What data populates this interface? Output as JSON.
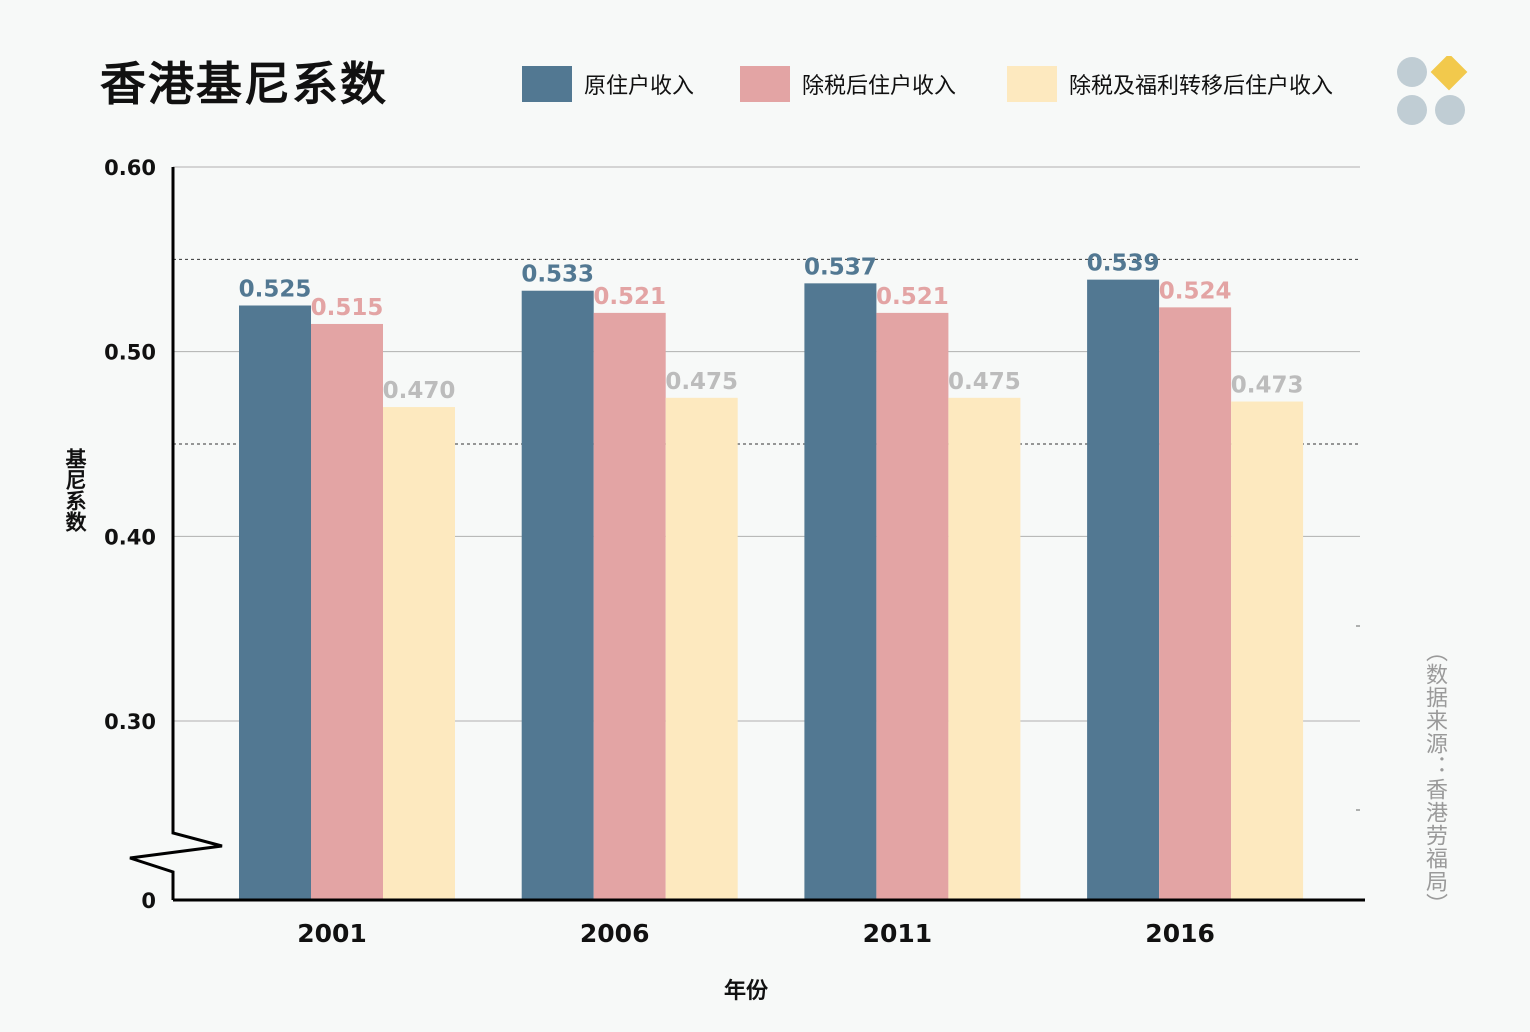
{
  "chart_data": {
    "type": "bar",
    "title": "香港基尼系数",
    "xlabel": "年份",
    "ylabel": "基尼系数",
    "categories": [
      "2001",
      "2006",
      "2011",
      "2016"
    ],
    "series": [
      {
        "name": "原住户收入",
        "values": [
          0.525,
          0.533,
          0.537,
          0.539
        ],
        "color": "#527892",
        "label_color": "#527892"
      },
      {
        "name": "除税后住户收入",
        "values": [
          0.515,
          0.521,
          0.521,
          0.524
        ],
        "color": "#e3a4a4",
        "label_color": "#e3a4a4"
      },
      {
        "name": "除税及福利转移后住户收入",
        "values": [
          0.47,
          0.475,
          0.475,
          0.473
        ],
        "color": "#fde9bf",
        "label_color": "#bcbcbc"
      }
    ],
    "y_ticks": [
      "0",
      "0.30",
      "0.40",
      "0.50",
      "0.60"
    ],
    "ylim": [
      0.2,
      0.6
    ],
    "axis_break": true,
    "grid": true,
    "legend_position": "top"
  },
  "source_note": "（数据来源：香港劳福局）"
}
